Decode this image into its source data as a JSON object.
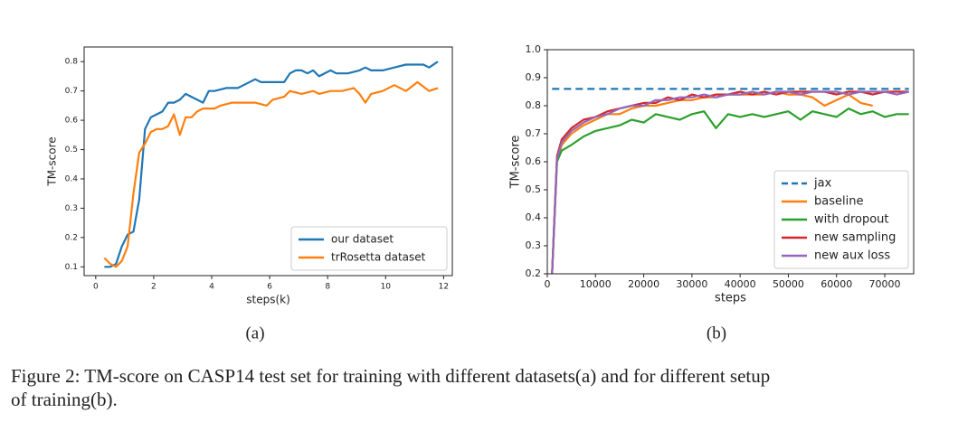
{
  "chart_data": [
    {
      "type": "line",
      "xlabel": "steps(k)",
      "ylabel": "TM-score",
      "xlim": [
        -0.4,
        12.3
      ],
      "ylim": [
        0.07,
        0.85
      ],
      "xticks": [
        0,
        2,
        4,
        6,
        8,
        10,
        12
      ],
      "yticks": [
        0.1,
        0.2,
        0.3,
        0.4,
        0.5,
        0.6,
        0.7,
        0.8
      ],
      "legend": "lower right",
      "series": [
        {
          "name": "our dataset",
          "color": "#1f77b4",
          "x": [
            0.3,
            0.5,
            0.7,
            0.9,
            1.1,
            1.3,
            1.5,
            1.7,
            1.9,
            2.1,
            2.3,
            2.5,
            2.7,
            2.9,
            3.1,
            3.3,
            3.5,
            3.7,
            3.9,
            4.1,
            4.5,
            4.9,
            5.1,
            5.5,
            5.7,
            6.1,
            6.5,
            6.7,
            6.9,
            7.1,
            7.3,
            7.5,
            7.7,
            8.1,
            8.3,
            8.7,
            9.1,
            9.3,
            9.5,
            9.9,
            10.3,
            10.7,
            11.1,
            11.3,
            11.5,
            11.8
          ],
          "values": [
            0.1,
            0.1,
            0.11,
            0.17,
            0.21,
            0.22,
            0.33,
            0.57,
            0.61,
            0.62,
            0.63,
            0.66,
            0.66,
            0.67,
            0.69,
            0.68,
            0.67,
            0.66,
            0.7,
            0.7,
            0.71,
            0.71,
            0.72,
            0.74,
            0.73,
            0.73,
            0.73,
            0.76,
            0.77,
            0.77,
            0.76,
            0.77,
            0.75,
            0.77,
            0.76,
            0.76,
            0.77,
            0.78,
            0.77,
            0.77,
            0.78,
            0.79,
            0.79,
            0.79,
            0.78,
            0.8
          ]
        },
        {
          "name": "trRosetta dataset",
          "color": "#ff7f0e",
          "x": [
            0.3,
            0.5,
            0.7,
            0.9,
            1.1,
            1.3,
            1.5,
            1.7,
            1.9,
            2.1,
            2.3,
            2.5,
            2.7,
            2.9,
            3.1,
            3.3,
            3.5,
            3.7,
            4.1,
            4.3,
            4.7,
            5.1,
            5.5,
            5.9,
            6.1,
            6.5,
            6.7,
            7.1,
            7.5,
            7.7,
            8.1,
            8.5,
            8.9,
            9.1,
            9.3,
            9.5,
            9.9,
            10.3,
            10.7,
            11.1,
            11.5,
            11.8
          ],
          "values": [
            0.13,
            0.11,
            0.1,
            0.12,
            0.17,
            0.35,
            0.49,
            0.52,
            0.56,
            0.57,
            0.57,
            0.58,
            0.62,
            0.55,
            0.61,
            0.61,
            0.63,
            0.64,
            0.64,
            0.65,
            0.66,
            0.66,
            0.66,
            0.65,
            0.67,
            0.68,
            0.7,
            0.69,
            0.7,
            0.69,
            0.7,
            0.7,
            0.71,
            0.69,
            0.66,
            0.69,
            0.7,
            0.72,
            0.7,
            0.73,
            0.7,
            0.71
          ]
        }
      ]
    },
    {
      "type": "line",
      "xlabel": "steps",
      "ylabel": "TM-score",
      "xlim": [
        0,
        76000
      ],
      "ylim": [
        0.2,
        1.0
      ],
      "xticks": [
        0,
        10000,
        20000,
        30000,
        40000,
        50000,
        60000,
        70000
      ],
      "yticks": [
        0.2,
        0.3,
        0.4,
        0.5,
        0.6,
        0.7,
        0.8,
        0.9,
        {
          "value": 1.0,
          "label": "1.0"
        }
      ],
      "legend": "lower right",
      "x": [
        1000,
        2000,
        3000,
        5000,
        7500,
        10000,
        12500,
        15000,
        17500,
        20000,
        22500,
        25000,
        27500,
        30000,
        32500,
        35000,
        37500,
        40000,
        42500,
        45000,
        47500,
        50000,
        52500,
        55000,
        57500,
        60000,
        62500,
        65000,
        67500,
        70000,
        72500,
        75000
      ],
      "series": [
        {
          "name": "jax",
          "color": "#1f77b4",
          "linestyle": "dashed",
          "values": [
            0.86,
            0.86,
            0.86,
            0.86,
            0.86,
            0.86,
            0.86,
            0.86,
            0.86,
            0.86,
            0.86,
            0.86,
            0.86,
            0.86,
            0.86,
            0.86,
            0.86,
            0.86,
            0.86,
            0.86,
            0.86,
            0.86,
            0.86,
            0.86,
            0.86,
            0.86,
            0.86,
            0.86,
            0.86,
            0.86,
            0.86,
            0.86
          ]
        },
        {
          "name": "baseline",
          "color": "#ff7f0e",
          "values": [
            0.2,
            0.6,
            0.66,
            0.7,
            0.73,
            0.75,
            0.77,
            0.77,
            0.79,
            0.8,
            0.8,
            0.81,
            0.82,
            0.82,
            0.83,
            0.83,
            0.84,
            0.84,
            0.84,
            0.84,
            0.85,
            0.84,
            0.84,
            0.83,
            0.8,
            0.82,
            0.84,
            0.81,
            0.8,
            null,
            null,
            null
          ]
        },
        {
          "name": "with dropout",
          "color": "#2ca02c",
          "values": [
            0.2,
            0.6,
            0.64,
            0.66,
            0.69,
            0.71,
            0.72,
            0.73,
            0.75,
            0.74,
            0.77,
            0.76,
            0.75,
            0.77,
            0.78,
            0.72,
            0.77,
            0.76,
            0.77,
            0.76,
            0.77,
            0.78,
            0.75,
            0.78,
            0.77,
            0.76,
            0.79,
            0.77,
            0.78,
            0.76,
            0.77,
            0.77
          ]
        },
        {
          "name": "new sampling",
          "color": "#d62728",
          "values": [
            0.2,
            0.62,
            0.68,
            0.72,
            0.75,
            0.76,
            0.78,
            0.79,
            0.8,
            0.81,
            0.81,
            0.83,
            0.82,
            0.84,
            0.83,
            0.84,
            0.84,
            0.85,
            0.84,
            0.85,
            0.84,
            0.85,
            0.85,
            0.85,
            0.85,
            0.84,
            0.85,
            0.85,
            0.84,
            0.85,
            0.85,
            0.85
          ]
        },
        {
          "name": "new aux loss",
          "color": "#9467bd",
          "values": [
            0.2,
            0.61,
            0.67,
            0.71,
            0.74,
            0.76,
            0.77,
            0.79,
            0.8,
            0.8,
            0.82,
            0.82,
            0.83,
            0.83,
            0.84,
            0.83,
            0.84,
            0.84,
            0.85,
            0.84,
            0.85,
            0.85,
            0.84,
            0.85,
            0.85,
            0.85,
            0.84,
            0.85,
            0.85,
            0.85,
            0.84,
            0.85
          ]
        }
      ]
    }
  ],
  "panel_labels": [
    "(a)",
    "(b)"
  ],
  "caption": [
    "Figure 2: TM-score on CASP14 test set for training with different datasets(a) and for different setup",
    "of training(b)."
  ]
}
